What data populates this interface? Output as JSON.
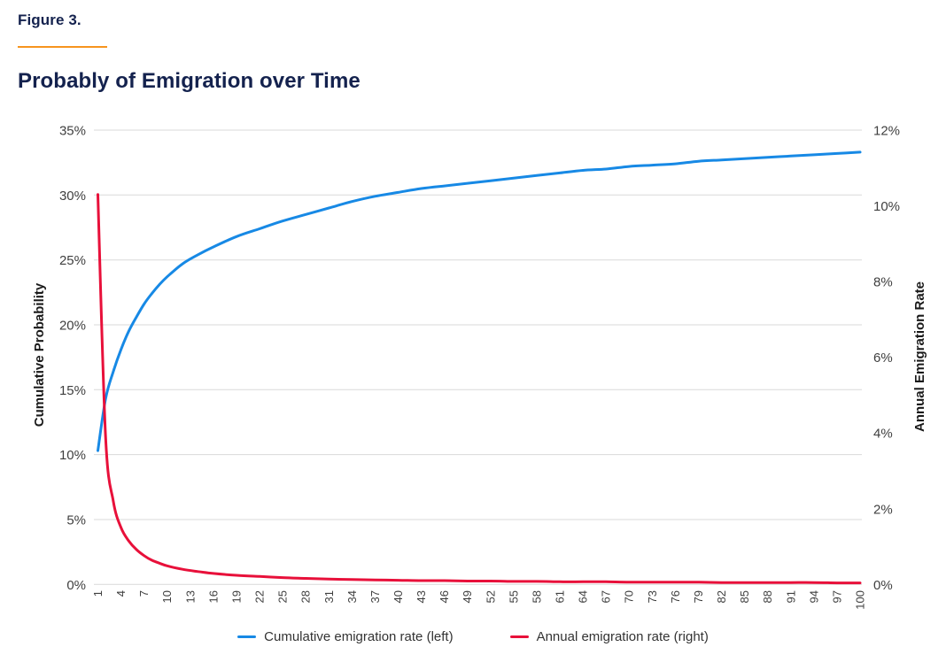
{
  "header": {
    "figure_label": "Figure 3.",
    "page_title": "Probably of Emigration over Time"
  },
  "colors": {
    "navy": "#14224e",
    "orange": "#f7941e",
    "blue": "#1789e5",
    "red": "#e8103a",
    "gridline": "#d9d9d9",
    "axis_text": "#3f3f3f",
    "legend_text": "#333333"
  },
  "chart_data": {
    "type": "line",
    "title": "Probably of Emigration over Time",
    "grid": "horizontal",
    "x_axis": {
      "min": 1,
      "max": 100,
      "tick_step": 3,
      "ticks": [
        1,
        4,
        7,
        10,
        13,
        16,
        19,
        22,
        25,
        28,
        31,
        34,
        37,
        40,
        43,
        46,
        49,
        52,
        55,
        58,
        61,
        64,
        67,
        70,
        73,
        76,
        79,
        82,
        85,
        88,
        91,
        94,
        97,
        100
      ]
    },
    "left_axis": {
      "title": "Cumulative Probability",
      "min": 0,
      "max": 35,
      "tick_step": 5,
      "tick_labels": [
        "35%",
        "30%",
        "25%",
        "20%",
        "15%",
        "10%",
        "5%",
        "0%"
      ]
    },
    "right_axis": {
      "title": "Annual Emigration Rate",
      "min": 0,
      "max": 12,
      "tick_step": 2,
      "tick_labels": [
        "12%",
        "10%",
        "8%",
        "6%",
        "4%",
        "2%",
        "0%"
      ]
    },
    "series": [
      {
        "name": "Cumulative emigration rate (left)",
        "axis": "left",
        "color": "#1789e5",
        "unit": "%",
        "x": [
          1,
          2,
          3,
          4,
          5,
          6,
          7,
          8,
          9,
          10,
          12,
          14,
          16,
          19,
          22,
          25,
          28,
          31,
          34,
          37,
          40,
          43,
          46,
          49,
          52,
          55,
          58,
          61,
          64,
          67,
          70,
          73,
          76,
          79,
          82,
          85,
          88,
          91,
          94,
          97,
          100
        ],
        "y": [
          10.3,
          14.3,
          16.4,
          18.1,
          19.5,
          20.6,
          21.6,
          22.4,
          23.1,
          23.7,
          24.7,
          25.4,
          26.0,
          26.8,
          27.4,
          28.0,
          28.5,
          29.0,
          29.5,
          29.9,
          30.2,
          30.5,
          30.7,
          30.9,
          31.1,
          31.3,
          31.5,
          31.7,
          31.9,
          32.0,
          32.2,
          32.3,
          32.4,
          32.6,
          32.7,
          32.8,
          32.9,
          33.0,
          33.1,
          33.2,
          33.3
        ]
      },
      {
        "name": "Annual emigration rate (right)",
        "axis": "right",
        "color": "#e8103a",
        "unit": "%",
        "x": [
          1,
          2,
          3,
          4,
          5,
          6,
          7,
          8,
          9,
          10,
          12,
          14,
          16,
          19,
          22,
          25,
          28,
          31,
          34,
          37,
          40,
          43,
          46,
          49,
          52,
          55,
          58,
          61,
          64,
          67,
          70,
          73,
          76,
          79,
          82,
          85,
          88,
          91,
          94,
          97,
          100
        ],
        "y": [
          10.3,
          3.9,
          2.2,
          1.5,
          1.15,
          0.92,
          0.76,
          0.64,
          0.56,
          0.49,
          0.4,
          0.34,
          0.29,
          0.24,
          0.21,
          0.18,
          0.16,
          0.14,
          0.13,
          0.12,
          0.11,
          0.1,
          0.1,
          0.09,
          0.09,
          0.08,
          0.08,
          0.07,
          0.07,
          0.07,
          0.06,
          0.06,
          0.06,
          0.06,
          0.05,
          0.05,
          0.05,
          0.05,
          0.05,
          0.04,
          0.04
        ]
      }
    ],
    "legend": {
      "position": "bottom",
      "entries": [
        "Cumulative emigration rate (left)",
        "Annual emigration rate (right)"
      ]
    }
  }
}
